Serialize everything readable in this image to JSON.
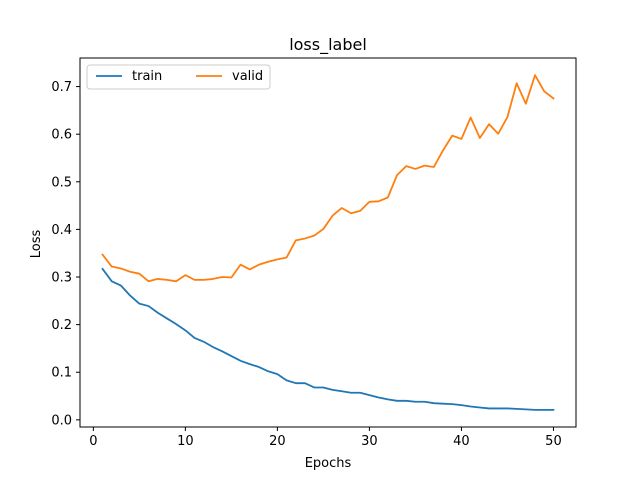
{
  "chart_data": {
    "type": "line",
    "title": "loss_label",
    "xlabel": "Epochs",
    "ylabel": "Loss",
    "xlim": [
      -1.45,
      52.45
    ],
    "ylim": [
      -0.015,
      0.76
    ],
    "xticks": [
      0,
      10,
      20,
      30,
      40,
      50
    ],
    "yticks": [
      0.0,
      0.1,
      0.2,
      0.3,
      0.4,
      0.5,
      0.6,
      0.7
    ],
    "ytick_labels": [
      "0.0",
      "0.1",
      "0.2",
      "0.3",
      "0.4",
      "0.5",
      "0.6",
      "0.7"
    ],
    "grid": false,
    "legend": {
      "placement": "top-left",
      "columns": 2
    },
    "x": [
      1,
      2,
      3,
      4,
      5,
      6,
      7,
      8,
      9,
      10,
      11,
      12,
      13,
      14,
      15,
      16,
      17,
      18,
      19,
      20,
      21,
      22,
      23,
      24,
      25,
      26,
      27,
      28,
      29,
      30,
      31,
      32,
      33,
      34,
      35,
      36,
      37,
      38,
      39,
      40,
      41,
      42,
      43,
      44,
      45,
      46,
      47,
      48,
      49,
      50
    ],
    "series": [
      {
        "name": "train",
        "color": "#1f77b4",
        "values": [
          0.317,
          0.291,
          0.282,
          0.261,
          0.244,
          0.239,
          0.225,
          0.213,
          0.201,
          0.188,
          0.172,
          0.164,
          0.153,
          0.144,
          0.134,
          0.124,
          0.117,
          0.111,
          0.102,
          0.096,
          0.083,
          0.077,
          0.077,
          0.068,
          0.068,
          0.063,
          0.06,
          0.057,
          0.057,
          0.052,
          0.047,
          0.043,
          0.04,
          0.04,
          0.038,
          0.038,
          0.035,
          0.034,
          0.033,
          0.031,
          0.028,
          0.026,
          0.024,
          0.024,
          0.024,
          0.023,
          0.022,
          0.021,
          0.021,
          0.021
        ]
      },
      {
        "name": "valid",
        "color": "#ff7f0e",
        "values": [
          0.347,
          0.322,
          0.318,
          0.311,
          0.307,
          0.291,
          0.296,
          0.294,
          0.291,
          0.304,
          0.294,
          0.294,
          0.296,
          0.3,
          0.299,
          0.326,
          0.316,
          0.326,
          0.332,
          0.337,
          0.341,
          0.377,
          0.381,
          0.387,
          0.401,
          0.429,
          0.445,
          0.434,
          0.439,
          0.458,
          0.459,
          0.467,
          0.514,
          0.533,
          0.527,
          0.534,
          0.531,
          0.566,
          0.597,
          0.59,
          0.635,
          0.592,
          0.621,
          0.601,
          0.636,
          0.707,
          0.664,
          0.724,
          0.69,
          0.675
        ]
      }
    ]
  }
}
